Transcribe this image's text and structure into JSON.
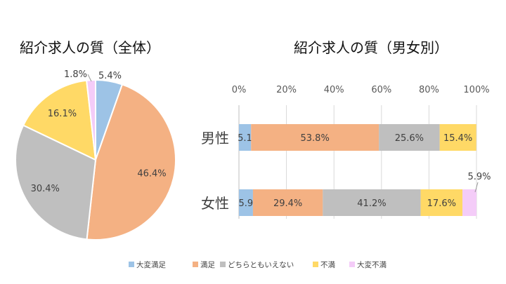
{
  "colors": {
    "very_satisfied": "#9DC3E6",
    "satisfied": "#F4B183",
    "neutral": "#BFBFBF",
    "dissatisfied": "#FFD966",
    "very_dissatisfied": "#F4CCF8"
  },
  "legend": [
    "大変満足",
    "満足",
    "どちらともいえない",
    "不満",
    "大変不満"
  ],
  "chart_data": [
    {
      "type": "pie",
      "title": "紹介求人の質（全体）",
      "categories": [
        "大変満足",
        "満足",
        "どちらともいえない",
        "不満",
        "大変不満"
      ],
      "values": [
        5.4,
        46.4,
        30.4,
        16.1,
        1.8
      ],
      "labels": [
        "5.4%",
        "46.4%",
        "30.4%",
        "16.1%",
        "1.8%"
      ]
    },
    {
      "type": "bar",
      "orientation": "horizontal-stacked-100",
      "title": "紹介求人の質（男女別）",
      "categories": [
        "男性",
        "女性"
      ],
      "xlim": [
        0,
        100
      ],
      "ticks": [
        "0%",
        "20%",
        "40%",
        "60%",
        "80%",
        "100%"
      ],
      "series": [
        {
          "name": "大変満足",
          "values": [
            5.1,
            5.9
          ],
          "labels": [
            "5.1%",
            "5.9%"
          ]
        },
        {
          "name": "満足",
          "values": [
            53.8,
            29.4
          ],
          "labels": [
            "53.8%",
            "29.4%"
          ]
        },
        {
          "name": "どちらともいえない",
          "values": [
            25.6,
            41.2
          ],
          "labels": [
            "25.6%",
            "41.2%"
          ]
        },
        {
          "name": "不満",
          "values": [
            15.4,
            17.6
          ],
          "labels": [
            "15.4%",
            "17.6%"
          ]
        },
        {
          "name": "大変不満",
          "values": [
            0,
            5.9
          ],
          "labels": [
            "",
            "5.9%"
          ]
        }
      ]
    }
  ]
}
